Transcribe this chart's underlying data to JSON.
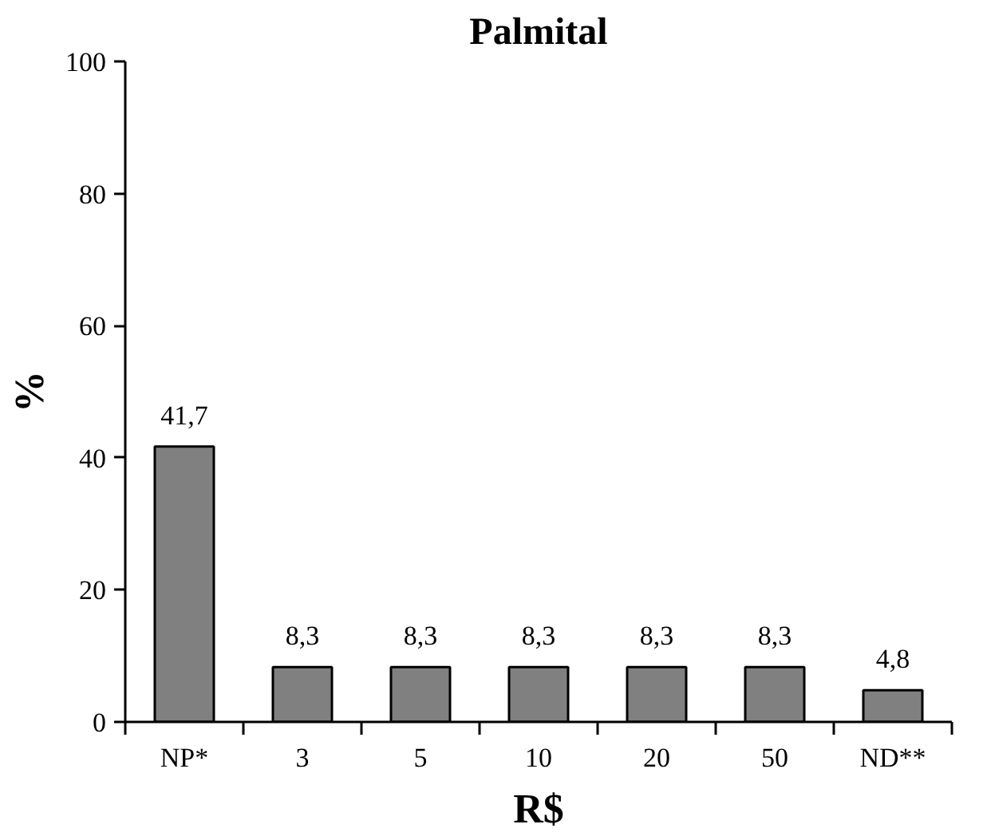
{
  "chart_data": {
    "type": "bar",
    "title": "Palmital",
    "xlabel": "R$",
    "ylabel": "%",
    "categories": [
      "NP*",
      "3",
      "5",
      "10",
      "20",
      "50",
      "ND**"
    ],
    "values": [
      41.7,
      8.3,
      8.3,
      8.3,
      8.3,
      8.3,
      4.8
    ],
    "value_labels": [
      "41,7",
      "8,3",
      "8,3",
      "8,3",
      "8,3",
      "8,3",
      "4,8"
    ],
    "color": "#808080",
    "ylim": [
      0,
      100
    ],
    "yticks": [
      0,
      20,
      40,
      60,
      80,
      100
    ],
    "grid": false
  }
}
